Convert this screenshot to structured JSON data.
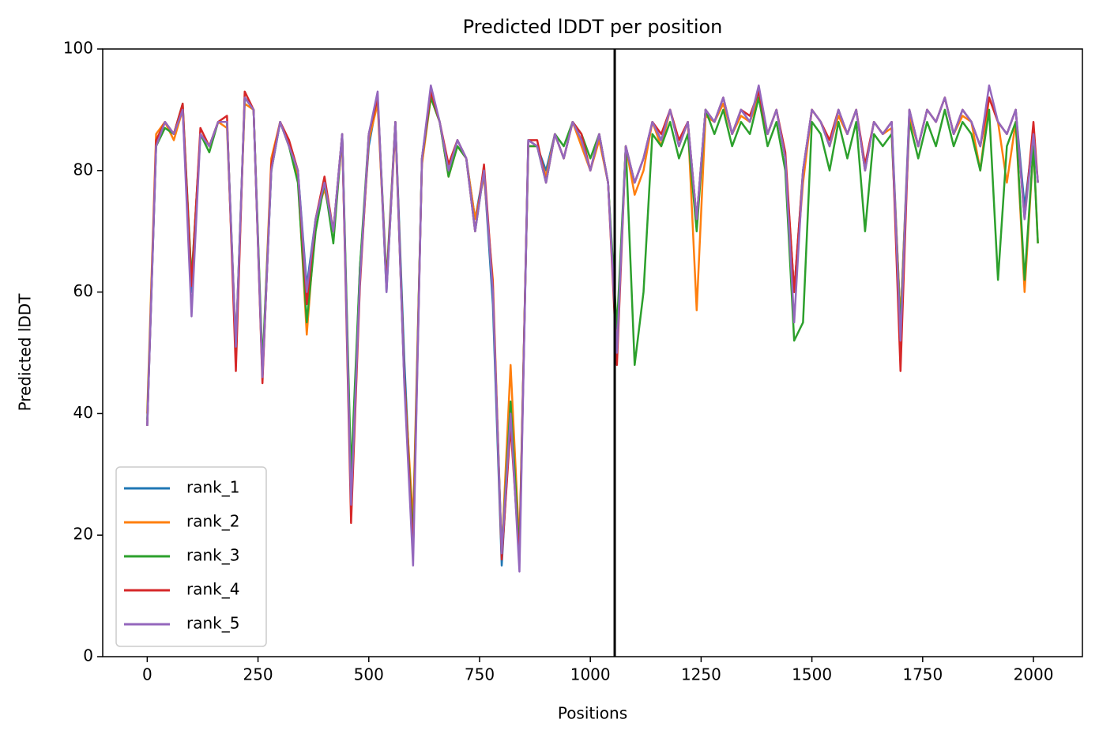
{
  "chart_data": {
    "type": "line",
    "title": "Predicted lDDT per position",
    "xlabel": "Positions",
    "ylabel": "Predicted lDDT",
    "x": [
      0,
      20,
      40,
      60,
      80,
      100,
      120,
      140,
      160,
      180,
      200,
      220,
      240,
      260,
      280,
      300,
      320,
      340,
      360,
      380,
      400,
      420,
      440,
      460,
      480,
      500,
      520,
      540,
      560,
      580,
      600,
      620,
      640,
      660,
      680,
      700,
      720,
      740,
      760,
      780,
      800,
      820,
      840,
      860,
      880,
      900,
      920,
      940,
      960,
      980,
      1000,
      1020,
      1040,
      1060,
      1080,
      1100,
      1120,
      1140,
      1160,
      1180,
      1200,
      1220,
      1240,
      1260,
      1280,
      1300,
      1320,
      1340,
      1360,
      1380,
      1400,
      1420,
      1440,
      1460,
      1480,
      1500,
      1520,
      1540,
      1560,
      1580,
      1600,
      1620,
      1640,
      1660,
      1680,
      1700,
      1720,
      1740,
      1760,
      1780,
      1800,
      1820,
      1840,
      1860,
      1880,
      1900,
      1920,
      1940,
      1960,
      1980,
      2000,
      2010
    ],
    "series": [
      {
        "name": "rank_1",
        "color": "#1f77b4",
        "values": [
          38,
          84,
          88,
          86,
          90,
          60,
          86,
          84,
          88,
          88,
          50,
          92,
          90,
          46,
          80,
          88,
          84,
          80,
          61,
          72,
          78,
          70,
          86,
          27,
          64,
          84,
          92,
          60,
          88,
          49,
          18,
          82,
          93,
          88,
          80,
          85,
          82,
          72,
          80,
          58,
          15,
          40,
          17,
          85,
          84,
          80,
          86,
          82,
          88,
          85,
          80,
          86,
          78,
          52,
          84,
          78,
          82,
          88,
          85,
          90,
          84,
          88,
          72,
          90,
          88,
          92,
          86,
          90,
          88,
          93,
          86,
          90,
          82,
          60,
          80,
          90,
          88,
          84,
          90,
          86,
          90,
          80,
          88,
          86,
          88,
          55,
          90,
          84,
          90,
          88,
          92,
          86,
          90,
          88,
          84,
          92,
          88,
          86,
          90,
          74,
          86,
          78
        ]
      },
      {
        "name": "rank_2",
        "color": "#ff7f0e",
        "values": [
          40,
          86,
          88,
          85,
          90,
          62,
          86,
          84,
          88,
          87,
          51,
          91,
          90,
          47,
          82,
          88,
          84,
          79,
          53,
          72,
          77,
          70,
          85,
          28,
          62,
          85,
          91,
          61,
          87,
          46,
          22,
          81,
          92,
          88,
          79,
          84,
          82,
          72,
          79,
          62,
          17,
          48,
          18,
          84,
          84,
          79,
          86,
          82,
          88,
          84,
          80,
          85,
          78,
          51,
          84,
          76,
          80,
          88,
          84,
          90,
          84,
          88,
          57,
          89,
          88,
          91,
          86,
          89,
          88,
          92,
          86,
          90,
          82,
          60,
          78,
          90,
          88,
          84,
          89,
          86,
          90,
          80,
          88,
          86,
          87,
          55,
          89,
          84,
          90,
          88,
          92,
          86,
          89,
          88,
          80,
          92,
          88,
          78,
          88,
          60,
          84,
          68
        ]
      },
      {
        "name": "rank_3",
        "color": "#2ca02c",
        "values": [
          39,
          84,
          87,
          86,
          91,
          62,
          86,
          83,
          88,
          88,
          51,
          92,
          90,
          48,
          80,
          88,
          84,
          78,
          55,
          70,
          78,
          68,
          86,
          30,
          64,
          86,
          92,
          62,
          88,
          46,
          19,
          82,
          92,
          88,
          79,
          84,
          82,
          70,
          80,
          60,
          17,
          42,
          17,
          84,
          84,
          78,
          86,
          84,
          88,
          86,
          82,
          86,
          78,
          54,
          84,
          48,
          60,
          86,
          84,
          88,
          82,
          86,
          70,
          90,
          86,
          90,
          84,
          88,
          86,
          92,
          84,
          88,
          80,
          52,
          55,
          88,
          86,
          80,
          88,
          82,
          88,
          70,
          86,
          84,
          86,
          54,
          88,
          82,
          88,
          84,
          90,
          84,
          88,
          86,
          80,
          90,
          62,
          84,
          88,
          62,
          84,
          68
        ]
      },
      {
        "name": "rank_4",
        "color": "#d62728",
        "values": [
          38,
          85,
          88,
          86,
          91,
          61,
          87,
          84,
          88,
          89,
          47,
          93,
          90,
          45,
          81,
          88,
          85,
          80,
          58,
          72,
          79,
          70,
          86,
          22,
          61,
          86,
          92,
          61,
          88,
          46,
          17,
          82,
          93,
          88,
          81,
          85,
          82,
          70,
          81,
          61,
          16,
          38,
          16,
          85,
          85,
          78,
          86,
          82,
          88,
          86,
          80,
          86,
          78,
          48,
          84,
          78,
          82,
          88,
          86,
          90,
          85,
          88,
          72,
          90,
          88,
          92,
          86,
          90,
          89,
          93,
          86,
          90,
          83,
          60,
          80,
          90,
          88,
          85,
          90,
          86,
          90,
          81,
          88,
          86,
          88,
          47,
          90,
          84,
          90,
          88,
          92,
          86,
          90,
          88,
          84,
          92,
          88,
          86,
          90,
          72,
          88,
          78
        ]
      },
      {
        "name": "rank_5",
        "color": "#9467bd",
        "values": [
          38,
          84,
          88,
          86,
          90,
          56,
          86,
          84,
          88,
          88,
          51,
          92,
          90,
          46,
          80,
          88,
          84,
          80,
          60,
          72,
          78,
          70,
          86,
          25,
          62,
          86,
          93,
          60,
          88,
          45,
          15,
          82,
          94,
          88,
          80,
          85,
          82,
          70,
          80,
          60,
          17,
          40,
          14,
          85,
          84,
          78,
          86,
          82,
          88,
          85,
          80,
          86,
          78,
          50,
          84,
          78,
          82,
          88,
          85,
          90,
          84,
          88,
          72,
          90,
          88,
          92,
          86,
          90,
          88,
          94,
          86,
          90,
          82,
          55,
          80,
          90,
          88,
          84,
          90,
          86,
          90,
          80,
          88,
          86,
          88,
          52,
          90,
          84,
          90,
          88,
          92,
          86,
          90,
          88,
          84,
          94,
          88,
          86,
          90,
          72,
          86,
          78
        ]
      }
    ],
    "vline": 1055,
    "vline_color": "#000000",
    "xlim": [
      -100.5,
      2110.5
    ],
    "xticks": [
      0,
      250,
      500,
      750,
      1000,
      1250,
      1500,
      1750,
      2000
    ],
    "ylim": [
      0,
      100
    ],
    "yticks": [
      0,
      20,
      40,
      60,
      80,
      100
    ],
    "legend": "lower left"
  }
}
